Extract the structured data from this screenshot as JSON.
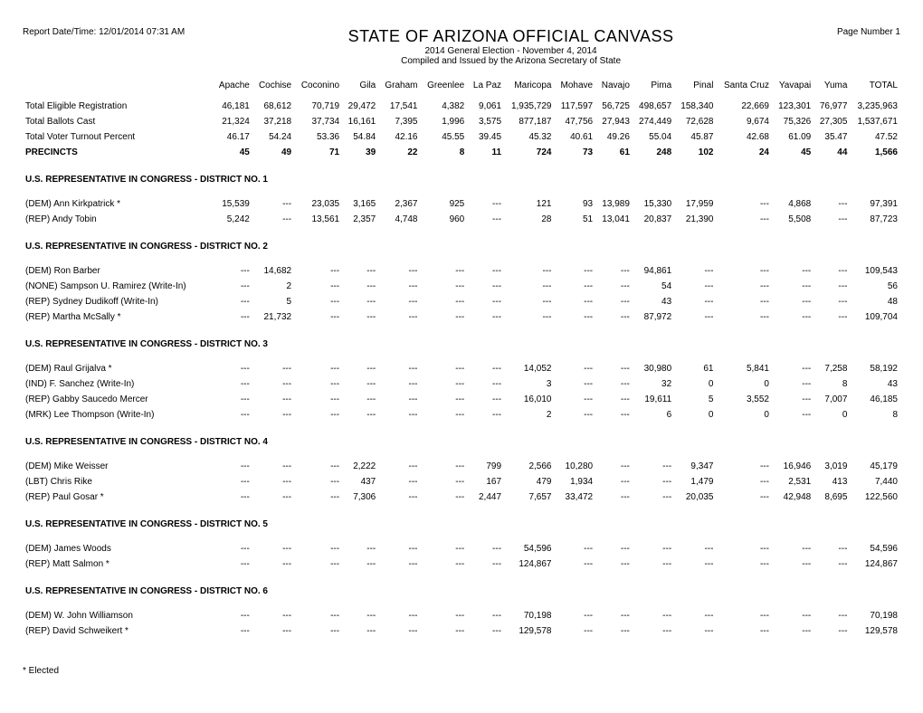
{
  "header": {
    "report_date": "Report Date/Time: 12/01/2014 07:31 AM",
    "page_number": "Page Number 1",
    "title": "STATE OF ARIZONA OFFICIAL CANVASS",
    "subtitle1": "2014 General Election - November 4, 2014",
    "subtitle2": "Compiled and Issued by the Arizona Secretary of State"
  },
  "columns": [
    "Apache",
    "Cochise",
    "Coconino",
    "Gila",
    "Graham",
    "Greenlee",
    "La Paz",
    "Maricopa",
    "Mohave",
    "Navajo",
    "Pima",
    "Pinal",
    "Santa Cruz",
    "Yavapai",
    "Yuma",
    "TOTAL"
  ],
  "summary": [
    {
      "label": "Total Eligible Registration",
      "bold": false,
      "spacer": true,
      "cells": [
        "46,181",
        "68,612",
        "70,719",
        "29,472",
        "17,541",
        "4,382",
        "9,061",
        "1,935,729",
        "117,597",
        "56,725",
        "498,657",
        "158,340",
        "22,669",
        "123,301",
        "76,977",
        "3,235,963"
      ]
    },
    {
      "label": "Total Ballots Cast",
      "bold": false,
      "cells": [
        "21,324",
        "37,218",
        "37,734",
        "16,161",
        "7,395",
        "1,996",
        "3,575",
        "877,187",
        "47,756",
        "27,943",
        "274,449",
        "72,628",
        "9,674",
        "75,326",
        "27,305",
        "1,537,671"
      ]
    },
    {
      "label": "Total Voter Turnout Percent",
      "bold": false,
      "cells": [
        "46.17",
        "54.24",
        "53.36",
        "54.84",
        "42.16",
        "45.55",
        "39.45",
        "45.32",
        "40.61",
        "49.26",
        "55.04",
        "45.87",
        "42.68",
        "61.09",
        "35.47",
        "47.52"
      ]
    },
    {
      "label": "PRECINCTS",
      "bold": true,
      "cells": [
        "45",
        "49",
        "71",
        "39",
        "22",
        "8",
        "11",
        "724",
        "73",
        "61",
        "248",
        "102",
        "24",
        "45",
        "44",
        "1,566"
      ]
    }
  ],
  "sections": [
    {
      "title": "U.S. REPRESENTATIVE IN CONGRESS - DISTRICT NO. 1",
      "rows": [
        {
          "label": "(DEM) Ann Kirkpatrick *",
          "cells": [
            "15,539",
            "---",
            "23,035",
            "3,165",
            "2,367",
            "925",
            "---",
            "121",
            "93",
            "13,989",
            "15,330",
            "17,959",
            "---",
            "4,868",
            "---",
            "97,391"
          ]
        },
        {
          "label": "(REP) Andy Tobin",
          "cells": [
            "5,242",
            "---",
            "13,561",
            "2,357",
            "4,748",
            "960",
            "---",
            "28",
            "51",
            "13,041",
            "20,837",
            "21,390",
            "---",
            "5,508",
            "---",
            "87,723"
          ]
        }
      ]
    },
    {
      "title": "U.S. REPRESENTATIVE IN CONGRESS - DISTRICT NO. 2",
      "rows": [
        {
          "label": "(DEM) Ron Barber",
          "cells": [
            "---",
            "14,682",
            "---",
            "---",
            "---",
            "---",
            "---",
            "---",
            "---",
            "---",
            "94,861",
            "---",
            "---",
            "---",
            "---",
            "109,543"
          ]
        },
        {
          "label": "(NONE) Sampson U. Ramirez (Write-In)",
          "cells": [
            "---",
            "2",
            "---",
            "---",
            "---",
            "---",
            "---",
            "---",
            "---",
            "---",
            "54",
            "---",
            "---",
            "---",
            "---",
            "56"
          ]
        },
        {
          "label": "(REP) Sydney Dudikoff (Write-In)",
          "cells": [
            "---",
            "5",
            "---",
            "---",
            "---",
            "---",
            "---",
            "---",
            "---",
            "---",
            "43",
            "---",
            "---",
            "---",
            "---",
            "48"
          ]
        },
        {
          "label": "(REP) Martha McSally *",
          "cells": [
            "---",
            "21,732",
            "---",
            "---",
            "---",
            "---",
            "---",
            "---",
            "---",
            "---",
            "87,972",
            "---",
            "---",
            "---",
            "---",
            "109,704"
          ]
        }
      ]
    },
    {
      "title": "U.S. REPRESENTATIVE IN CONGRESS - DISTRICT NO. 3",
      "rows": [
        {
          "label": "(DEM) Raul Grijalva *",
          "cells": [
            "---",
            "---",
            "---",
            "---",
            "---",
            "---",
            "---",
            "14,052",
            "---",
            "---",
            "30,980",
            "61",
            "5,841",
            "---",
            "7,258",
            "58,192"
          ]
        },
        {
          "label": "(IND) F. Sanchez (Write-In)",
          "cells": [
            "---",
            "---",
            "---",
            "---",
            "---",
            "---",
            "---",
            "3",
            "---",
            "---",
            "32",
            "0",
            "0",
            "---",
            "8",
            "43"
          ]
        },
        {
          "label": "(REP) Gabby Saucedo Mercer",
          "cells": [
            "---",
            "---",
            "---",
            "---",
            "---",
            "---",
            "---",
            "16,010",
            "---",
            "---",
            "19,611",
            "5",
            "3,552",
            "---",
            "7,007",
            "46,185"
          ]
        },
        {
          "label": "(MRK) Lee Thompson (Write-In)",
          "cells": [
            "---",
            "---",
            "---",
            "---",
            "---",
            "---",
            "---",
            "2",
            "---",
            "---",
            "6",
            "0",
            "0",
            "---",
            "0",
            "8"
          ]
        }
      ]
    },
    {
      "title": "U.S. REPRESENTATIVE IN CONGRESS - DISTRICT NO. 4",
      "rows": [
        {
          "label": "(DEM) Mike Weisser",
          "cells": [
            "---",
            "---",
            "---",
            "2,222",
            "---",
            "---",
            "799",
            "2,566",
            "10,280",
            "---",
            "---",
            "9,347",
            "---",
            "16,946",
            "3,019",
            "45,179"
          ]
        },
        {
          "label": "(LBT) Chris Rike",
          "cells": [
            "---",
            "---",
            "---",
            "437",
            "---",
            "---",
            "167",
            "479",
            "1,934",
            "---",
            "---",
            "1,479",
            "---",
            "2,531",
            "413",
            "7,440"
          ]
        },
        {
          "label": "(REP) Paul Gosar *",
          "cells": [
            "---",
            "---",
            "---",
            "7,306",
            "---",
            "---",
            "2,447",
            "7,657",
            "33,472",
            "---",
            "---",
            "20,035",
            "---",
            "42,948",
            "8,695",
            "122,560"
          ]
        }
      ]
    },
    {
      "title": "U.S. REPRESENTATIVE IN CONGRESS - DISTRICT NO. 5",
      "rows": [
        {
          "label": "(DEM) James Woods",
          "cells": [
            "---",
            "---",
            "---",
            "---",
            "---",
            "---",
            "---",
            "54,596",
            "---",
            "---",
            "---",
            "---",
            "---",
            "---",
            "---",
            "54,596"
          ]
        },
        {
          "label": "(REP) Matt Salmon *",
          "cells": [
            "---",
            "---",
            "---",
            "---",
            "---",
            "---",
            "---",
            "124,867",
            "---",
            "---",
            "---",
            "---",
            "---",
            "---",
            "---",
            "124,867"
          ]
        }
      ]
    },
    {
      "title": "U.S. REPRESENTATIVE IN CONGRESS - DISTRICT NO. 6",
      "rows": [
        {
          "label": "(DEM) W. John Williamson",
          "cells": [
            "---",
            "---",
            "---",
            "---",
            "---",
            "---",
            "---",
            "70,198",
            "---",
            "---",
            "---",
            "---",
            "---",
            "---",
            "---",
            "70,198"
          ]
        },
        {
          "label": "(REP) David Schweikert *",
          "cells": [
            "---",
            "---",
            "---",
            "---",
            "---",
            "---",
            "---",
            "129,578",
            "---",
            "---",
            "---",
            "---",
            "---",
            "---",
            "---",
            "129,578"
          ]
        }
      ]
    }
  ],
  "footnote": "* Elected"
}
